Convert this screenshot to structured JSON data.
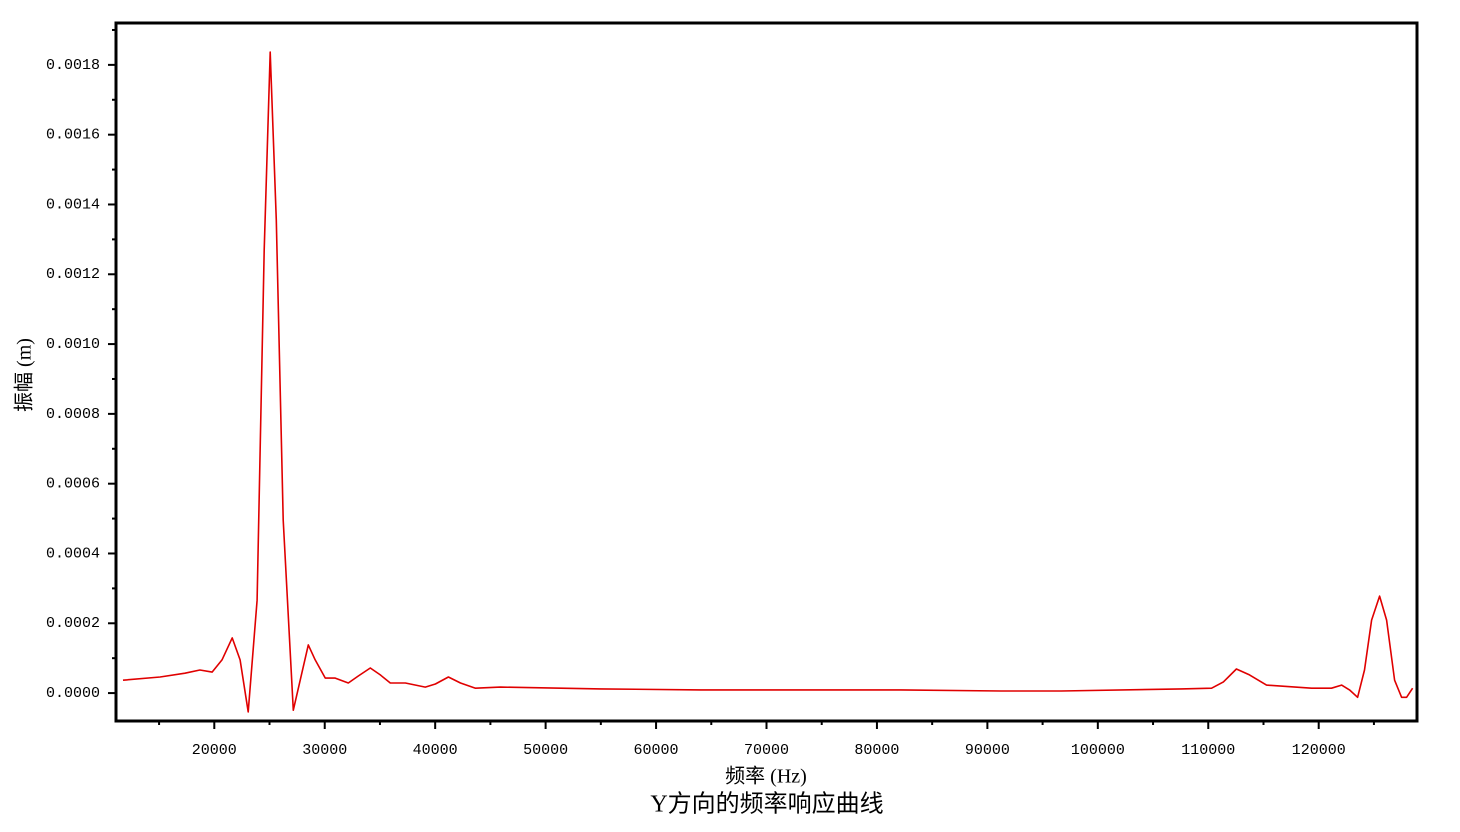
{
  "chart_data": {
    "type": "line",
    "title": "Y方向的频率响应曲线",
    "x_label": "频率 (Hz)",
    "y_label": "振幅 (m)",
    "xlim": [
      11100,
      128900
    ],
    "ylim": [
      -8e-05,
      0.00192
    ],
    "xticks": [
      20000,
      30000,
      40000,
      50000,
      60000,
      70000,
      80000,
      90000,
      100000,
      110000,
      120000
    ],
    "xminorticks": [
      15000,
      25000,
      35000,
      45000,
      55000,
      65000,
      75000,
      85000,
      95000,
      105000,
      115000,
      125000
    ],
    "yticks": [
      {
        "value": 0,
        "label": "0.0000"
      },
      {
        "value": 0.0002,
        "label": "0.0002"
      },
      {
        "value": 0.0004,
        "label": "0.0004"
      },
      {
        "value": 0.0006,
        "label": "0.0006"
      },
      {
        "value": 0.0008,
        "label": "0.0008"
      },
      {
        "value": 0.001,
        "label": "0.0010"
      },
      {
        "value": 0.0012,
        "label": "0.0012"
      },
      {
        "value": 0.0014,
        "label": "0.0014"
      },
      {
        "value": 0.0016,
        "label": "0.0016"
      },
      {
        "value": 0.0018,
        "label": "0.0018"
      }
    ],
    "yminorticks": [
      0.0001,
      0.0003,
      0.0005,
      0.0007,
      0.0009,
      0.0011,
      0.0013,
      0.0015,
      0.0017,
      0.0019
    ],
    "series": [
      {
        "color": "#e00000",
        "x": [
          11730,
          15090,
          17350,
          18700,
          19800,
          20700,
          21620,
          22340,
          23070,
          23880,
          24520,
          25060,
          25610,
          26240,
          27150,
          27780,
          28510,
          29140,
          30050,
          30950,
          32130,
          33040,
          34130,
          35030,
          35940,
          37300,
          39110,
          40020,
          41200,
          42290,
          43650,
          45910,
          54980,
          64050,
          82180,
          91240,
          96680,
          107570,
          110300,
          111370,
          112550,
          113730,
          115270,
          119350,
          121160,
          122070,
          122790,
          123520,
          124150,
          124790,
          125510,
          126150,
          126870,
          127510,
          127960,
          128500
        ],
        "values": [
          3.7e-05,
          4.6e-05,
          5.7e-05,
          6.6e-05,
          6e-05,
          9.5e-05,
          0.000158,
          9.5e-05,
          -5.4e-05,
          0.000266,
          0.00127,
          0.001837,
          0.001355,
          0.000496,
          -4.9e-05,
          3.7e-05,
          0.000138,
          9.5e-05,
          4.3e-05,
          4.3e-05,
          2.9e-05,
          4.9e-05,
          7.2e-05,
          5.2e-05,
          2.9e-05,
          2.9e-05,
          1.7e-05,
          2.6e-05,
          4.6e-05,
          2.9e-05,
          1.4e-05,
          1.7e-05,
          1.2e-05,
          9e-06,
          9e-06,
          6e-06,
          6e-06,
          1.2e-05,
          1.4e-05,
          3.2e-05,
          6.9e-05,
          5.2e-05,
          2.3e-05,
          1.4e-05,
          1.4e-05,
          2.3e-05,
          9e-06,
          -1.2e-05,
          6.6e-05,
          0.000209,
          0.000278,
          0.000209,
          3.7e-05,
          -1.2e-05,
          -1.2e-05,
          1.4e-05
        ]
      }
    ]
  }
}
